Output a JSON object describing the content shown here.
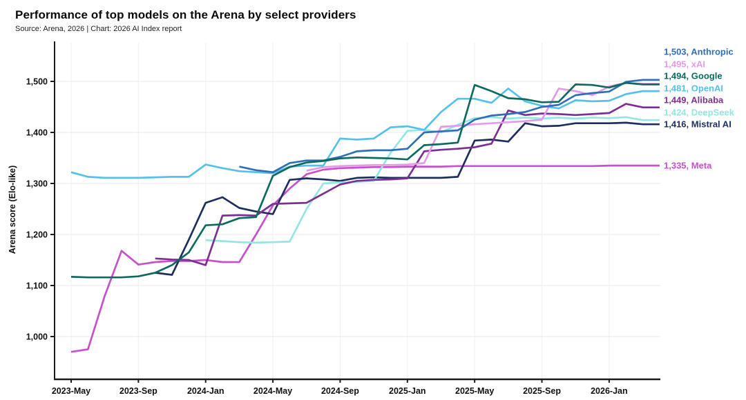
{
  "header": {
    "title": "Performance of top models on the Arena by select providers",
    "subtitle": "Source: Arena, 2026 | Chart: 2026 AI Index report"
  },
  "chart_data": {
    "type": "line",
    "title": "Performance of top models on the Arena by select providers",
    "subtitle": "Source: Arena, 2026 | Chart: 2026 AI Index report",
    "xlabel": "",
    "ylabel": "Arena score (Elo-like)",
    "ylim": [
      917,
      1576
    ],
    "grid": true,
    "legend_position": "right",
    "months": [
      "2023-05",
      "2023-06",
      "2023-07",
      "2023-08",
      "2023-09",
      "2023-10",
      "2023-11",
      "2023-12",
      "2024-01",
      "2024-02",
      "2024-03",
      "2024-04",
      "2024-05",
      "2024-06",
      "2024-07",
      "2024-08",
      "2024-09",
      "2024-10",
      "2024-11",
      "2024-12",
      "2025-01",
      "2025-02",
      "2025-03",
      "2025-04",
      "2025-05",
      "2025-06",
      "2025-07",
      "2025-08",
      "2025-09",
      "2025-10",
      "2025-11",
      "2025-12",
      "2026-01",
      "2026-02",
      "2026-03",
      "2026-04"
    ],
    "x_ticks": [
      {
        "month_index": 0,
        "label": "2023-May"
      },
      {
        "month_index": 4,
        "label": "2023-Sep"
      },
      {
        "month_index": 8,
        "label": "2024-Jan"
      },
      {
        "month_index": 12,
        "label": "2024-May"
      },
      {
        "month_index": 16,
        "label": "2024-Sep"
      },
      {
        "month_index": 20,
        "label": "2025-Jan"
      },
      {
        "month_index": 24,
        "label": "2025-May"
      },
      {
        "month_index": 28,
        "label": "2025-Sep"
      },
      {
        "month_index": 32,
        "label": "2026-Jan"
      }
    ],
    "y_ticks": [
      {
        "value": 1000,
        "label": "1,000"
      },
      {
        "value": 1100,
        "label": "1,100"
      },
      {
        "value": 1200,
        "label": "1,200"
      },
      {
        "value": 1300,
        "label": "1,300"
      },
      {
        "value": 1400,
        "label": "1,400"
      },
      {
        "value": 1500,
        "label": "1,500"
      }
    ],
    "series": [
      {
        "name": "Anthropic",
        "color": "#2e6fb7",
        "final_value": 1503,
        "final_label": "1,503",
        "values": [
          null,
          null,
          null,
          null,
          null,
          null,
          null,
          null,
          null,
          null,
          1333,
          1326,
          1322,
          1340,
          1345,
          1345,
          1352,
          1363,
          1365,
          1365,
          1368,
          1400,
          1402,
          1404,
          1425,
          1433,
          1436,
          1440,
          1450,
          1454,
          1473,
          1477,
          1480,
          1499,
          1503,
          1503
        ]
      },
      {
        "name": "xAI",
        "color": "#e49ae7",
        "final_value": 1495,
        "final_label": "1,495",
        "values": [
          null,
          null,
          null,
          null,
          null,
          null,
          null,
          null,
          null,
          null,
          null,
          null,
          null,
          null,
          1325,
          1332,
          1334,
          1335,
          1336,
          1336,
          1337,
          1340,
          1411,
          1413,
          1416,
          1418,
          1420,
          1422,
          1425,
          1486,
          1481,
          1473,
          1490,
          1497,
          1495,
          1495
        ]
      },
      {
        "name": "Google",
        "color": "#0e6a5e",
        "final_value": 1494,
        "final_label": "1,494",
        "values": [
          1117,
          1116,
          1116,
          1116,
          1118,
          1125,
          1140,
          1165,
          1218,
          1220,
          1232,
          1234,
          1315,
          1332,
          1341,
          1344,
          1349,
          1351,
          1350,
          1349,
          1347,
          1375,
          1377,
          1380,
          1493,
          1481,
          1467,
          1465,
          1459,
          1460,
          1494,
          1493,
          1488,
          1497,
          1494,
          1494
        ]
      },
      {
        "name": "OpenAI",
        "color": "#55c1e9",
        "final_value": 1481,
        "final_label": "1,481",
        "values": [
          1322,
          1313,
          1311,
          1311,
          1311,
          1312,
          1313,
          1313,
          1337,
          1330,
          1324,
          1322,
          1320,
          1333,
          1335,
          1335,
          1388,
          1386,
          1388,
          1410,
          1412,
          1405,
          1440,
          1466,
          1466,
          1458,
          1486,
          1461,
          1452,
          1447,
          1463,
          1461,
          1462,
          1475,
          1481,
          1481
        ]
      },
      {
        "name": "Alibaba",
        "color": "#7d2f91",
        "final_value": 1449,
        "final_label": "1,449",
        "values": [
          null,
          null,
          null,
          null,
          null,
          1153,
          1151,
          1150,
          1140,
          1237,
          1238,
          1237,
          1260,
          1261,
          1262,
          1280,
          1298,
          1305,
          1307,
          1308,
          1310,
          1363,
          1366,
          1368,
          1371,
          1378,
          1443,
          1434,
          1437,
          1436,
          1434,
          1436,
          1438,
          1456,
          1449,
          1449
        ]
      },
      {
        "name": "DeepSeek",
        "color": "#93e6e2",
        "final_value": 1424,
        "final_label": "1,424",
        "values": [
          null,
          null,
          null,
          null,
          null,
          null,
          null,
          null,
          1189,
          1187,
          1185,
          1184,
          1185,
          1186,
          1250,
          1300,
          1302,
          1303,
          1305,
          1360,
          1403,
          1405,
          1400,
          1415,
          1428,
          1430,
          1427,
          1429,
          1427,
          1429,
          1427,
          1429,
          1428,
          1430,
          1424,
          1424
        ]
      },
      {
        "name": "Mistral AI",
        "color": "#1e2f5e",
        "final_value": 1416,
        "final_label": "1,416",
        "values": [
          null,
          null,
          null,
          null,
          null,
          1125,
          1121,
          1190,
          1262,
          1273,
          1252,
          1245,
          1240,
          1307,
          1310,
          1308,
          1305,
          1311,
          1312,
          1311,
          1311,
          1311,
          1311,
          1313,
          1384,
          1386,
          1382,
          1418,
          1412,
          1413,
          1418,
          1418,
          1418,
          1419,
          1416,
          1416
        ]
      },
      {
        "name": "Meta",
        "color": "#c650ce",
        "final_value": 1335,
        "final_label": "1,335",
        "values": [
          970,
          975,
          1080,
          1168,
          1141,
          1146,
          1148,
          1148,
          1150,
          1146,
          1146,
          1200,
          1257,
          1290,
          1318,
          1327,
          1330,
          1331,
          1332,
          1332,
          1333,
          1333,
          1333,
          1334,
          1334,
          1334,
          1334,
          1334,
          1334,
          1334,
          1334,
          1334,
          1335,
          1335,
          1335,
          1335
        ]
      }
    ]
  }
}
